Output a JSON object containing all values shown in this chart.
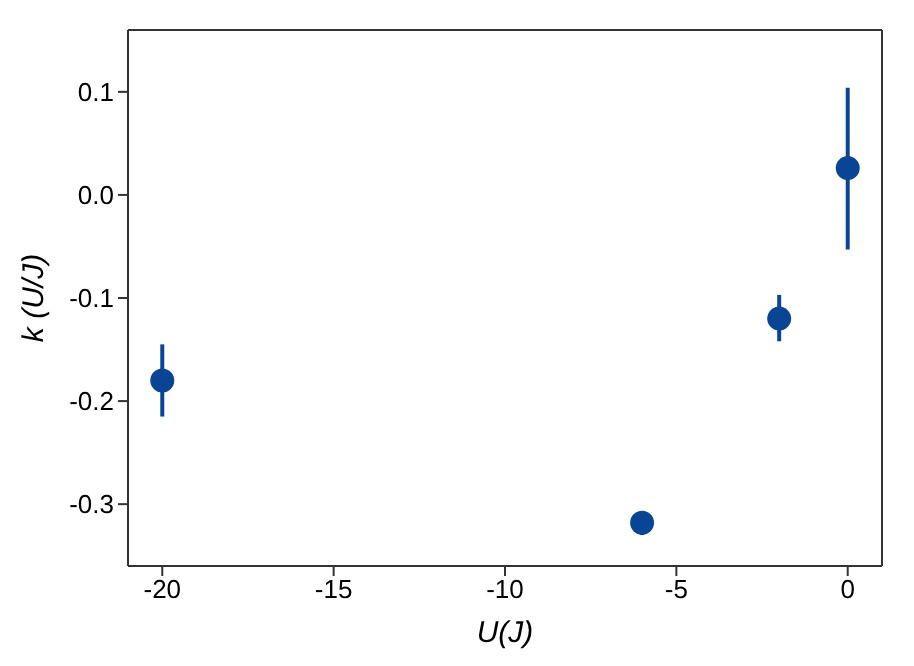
{
  "chart_data": {
    "type": "scatter",
    "xlabel": "U(J)",
    "ylabel": "k (U/J)",
    "x": [
      -20,
      -6,
      -2,
      0
    ],
    "series": [
      {
        "color": "#0a4595",
        "values": [
          -0.18,
          -0.318,
          -0.12,
          0.026
        ],
        "errors": [
          [
            -0.215,
            -0.145
          ],
          [
            -0.33,
            -0.307
          ],
          [
            -0.142,
            -0.097
          ],
          [
            -0.053,
            0.104
          ]
        ]
      }
    ],
    "xlim": [
      -21,
      1
    ],
    "xticks": [
      -20,
      -15,
      -10,
      -5,
      0
    ],
    "ylim": [
      -0.36,
      0.16
    ],
    "yticks": [
      -0.3,
      -0.2,
      -0.1,
      {
        "value": 0,
        "label": "0.0"
      },
      0.1
    ],
    "marker": "circle",
    "grid": false,
    "legend": false
  }
}
